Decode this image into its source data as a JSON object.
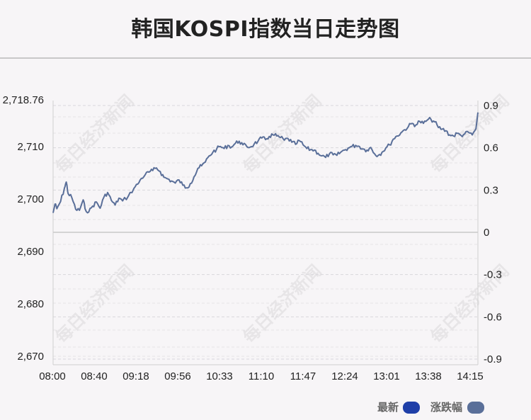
{
  "title": "韩国KOSPI指数当日走势图",
  "watermark": "每日经济新闻",
  "legend": {
    "latest": {
      "label": "最新",
      "color": "#1f3fa8"
    },
    "change": {
      "label": "涨跌幅",
      "color": "#5a6f99"
    }
  },
  "chart_data": {
    "type": "line",
    "title": "韩国KOSPI指数当日走势图",
    "x_ticks": [
      "08:00",
      "08:40",
      "09:18",
      "09:56",
      "10:33",
      "11:10",
      "11:47",
      "12:24",
      "13:01",
      "13:38",
      "14:15"
    ],
    "y_left_ticks": [
      "2,718.76",
      "2,710",
      "2,700",
      "2,690",
      "2,680",
      "2,670"
    ],
    "y_left_tick_values": [
      2718.76,
      2710,
      2700,
      2690,
      2680,
      2670
    ],
    "y_right_ticks": [
      "0.9",
      "0.6",
      "0.3",
      "0",
      "-0.3",
      "-0.6",
      "-0.9"
    ],
    "y_right_tick_values": [
      0.9,
      0.6,
      0.3,
      0,
      -0.3,
      -0.6,
      -0.9
    ],
    "ylim_left": [
      2668.3,
      2718.76
    ],
    "ylim_right": [
      -0.9,
      0.9
    ],
    "baseline": 2694.5,
    "line_color": "#5a6f99",
    "grid": "dashed horizontal",
    "series": [
      {
        "values": [
          [
            0,
            2697.3
          ],
          [
            1,
            2699.0
          ],
          [
            2,
            2698.1
          ],
          [
            4,
            2699.5
          ],
          [
            6,
            2702.0
          ],
          [
            7,
            2703.2
          ],
          [
            8,
            2701.0
          ],
          [
            10,
            2700.2
          ],
          [
            12,
            2698.0
          ],
          [
            14,
            2697.8
          ],
          [
            16,
            2699.8
          ],
          [
            17,
            2698.1
          ],
          [
            19,
            2697.5
          ],
          [
            21,
            2698.6
          ],
          [
            23,
            2699.4
          ],
          [
            25,
            2698.2
          ],
          [
            27,
            2700.3
          ],
          [
            29,
            2701.2
          ],
          [
            31,
            2699.7
          ],
          [
            33,
            2698.8
          ],
          [
            35,
            2700.1
          ],
          [
            37,
            2699.6
          ],
          [
            40,
            2700.5
          ],
          [
            43,
            2702.0
          ],
          [
            45,
            2702.8
          ],
          [
            47,
            2703.9
          ],
          [
            49,
            2704.6
          ],
          [
            51,
            2705.1
          ],
          [
            53,
            2705.4
          ],
          [
            55,
            2705.9
          ],
          [
            57,
            2705.2
          ],
          [
            59,
            2704.1
          ],
          [
            61,
            2703.8
          ],
          [
            63,
            2703.4
          ],
          [
            65,
            2703.0
          ],
          [
            67,
            2703.6
          ],
          [
            69,
            2702.6
          ],
          [
            71,
            2702.1
          ],
          [
            73,
            2702.9
          ],
          [
            75,
            2704.2
          ],
          [
            77,
            2705.8
          ],
          [
            79,
            2706.3
          ],
          [
            81,
            2707.0
          ],
          [
            83,
            2708.2
          ],
          [
            85,
            2708.9
          ],
          [
            87,
            2709.5
          ],
          [
            89,
            2710.0
          ],
          [
            91,
            2709.6
          ],
          [
            93,
            2710.2
          ],
          [
            95,
            2709.9
          ],
          [
            97,
            2710.6
          ],
          [
            99,
            2711.0
          ],
          [
            101,
            2710.3
          ],
          [
            103,
            2710.0
          ],
          [
            105,
            2709.9
          ],
          [
            107,
            2710.5
          ],
          [
            109,
            2711.0
          ],
          [
            111,
            2711.6
          ],
          [
            113,
            2711.3
          ],
          [
            115,
            2711.9
          ],
          [
            117,
            2712.2
          ],
          [
            119,
            2712.0
          ],
          [
            121,
            2711.7
          ],
          [
            123,
            2711.2
          ],
          [
            125,
            2711.5
          ],
          [
            127,
            2710.8
          ],
          [
            129,
            2710.4
          ],
          [
            131,
            2711.1
          ],
          [
            133,
            2710.3
          ],
          [
            135,
            2709.6
          ],
          [
            137,
            2709.4
          ],
          [
            139,
            2709.3
          ],
          [
            141,
            2708.7
          ],
          [
            143,
            2708.2
          ],
          [
            145,
            2707.9
          ],
          [
            147,
            2708.6
          ],
          [
            149,
            2708.4
          ],
          [
            151,
            2708.3
          ],
          [
            153,
            2708.9
          ],
          [
            155,
            2709.3
          ],
          [
            157,
            2709.7
          ],
          [
            159,
            2710.0
          ],
          [
            161,
            2710.2
          ],
          [
            163,
            2710.0
          ],
          [
            165,
            2709.5
          ],
          [
            167,
            2709.3
          ],
          [
            169,
            2709.8
          ],
          [
            171,
            2708.6
          ],
          [
            173,
            2708.3
          ],
          [
            175,
            2708.9
          ],
          [
            177,
            2709.7
          ],
          [
            179,
            2710.3
          ],
          [
            181,
            2711.4
          ],
          [
            183,
            2712.0
          ],
          [
            185,
            2712.6
          ],
          [
            187,
            2713.2
          ],
          [
            189,
            2713.8
          ],
          [
            191,
            2714.4
          ],
          [
            193,
            2714.1
          ],
          [
            195,
            2714.8
          ],
          [
            197,
            2714.4
          ],
          [
            199,
            2715.0
          ],
          [
            201,
            2715.2
          ],
          [
            203,
            2714.7
          ],
          [
            205,
            2713.6
          ],
          [
            207,
            2713.3
          ],
          [
            209,
            2713.0
          ],
          [
            211,
            2712.2
          ],
          [
            213,
            2712.0
          ],
          [
            215,
            2712.5
          ],
          [
            217,
            2712.1
          ],
          [
            219,
            2712.4
          ],
          [
            221,
            2712.7
          ],
          [
            223,
            2712.2
          ],
          [
            225,
            2713.4
          ],
          [
            226,
            2716.5
          ]
        ]
      }
    ]
  }
}
